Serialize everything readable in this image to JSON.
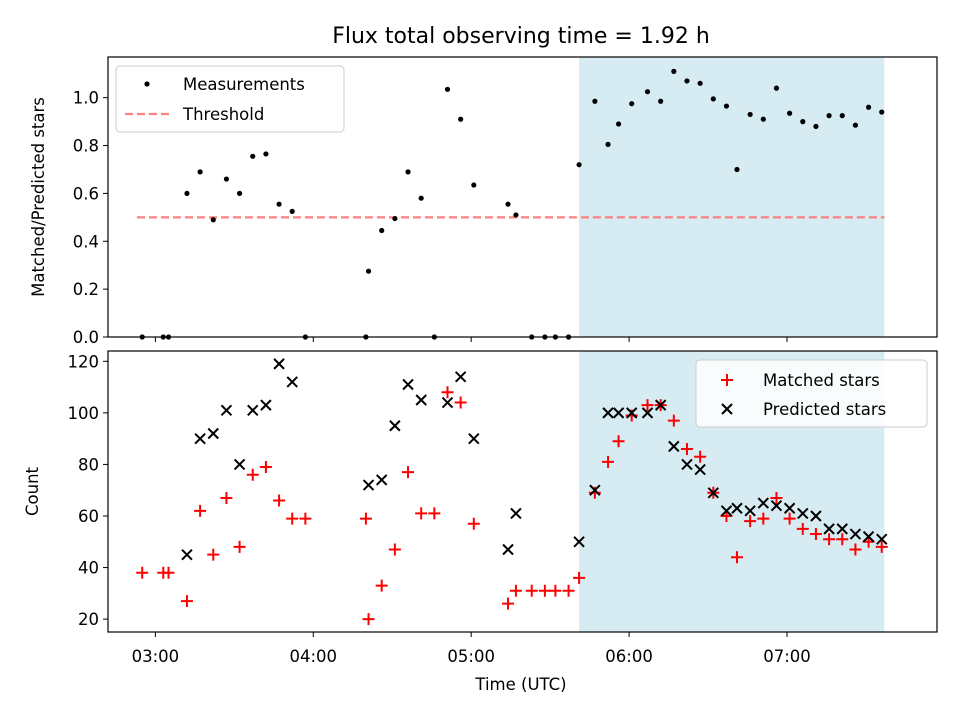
{
  "chart_data": [
    {
      "type": "scatter",
      "title": "Flux total observing time = 1.92 h",
      "xlabel": "",
      "ylabel": "Matched/Predicted stars",
      "ylim": [
        0,
        1.17
      ],
      "yticks": [
        "0.0",
        "0.2",
        "0.4",
        "0.6",
        "0.8",
        "1.0"
      ],
      "xlim": [
        "02:42",
        "07:57"
      ],
      "legend": {
        "placement": "top-left",
        "entries": [
          "Measurements",
          "Threshold"
        ]
      },
      "highlight_span": {
        "x_start": "05:41",
        "x_end": "07:37",
        "color": "#add8e6"
      },
      "threshold": {
        "value": 0.5,
        "x_start": "02:53",
        "x_end": "07:37",
        "color": "#ff8080"
      },
      "series": [
        {
          "name": "Measurements",
          "marker": "dot",
          "color": "#000000",
          "points": [
            [
              "02:55",
              0.0
            ],
            [
              "03:03",
              0.0
            ],
            [
              "03:05",
              0.0
            ],
            [
              "03:12",
              0.6
            ],
            [
              "03:17",
              0.69
            ],
            [
              "03:22",
              0.49
            ],
            [
              "03:27",
              0.66
            ],
            [
              "03:32",
              0.6
            ],
            [
              "03:37",
              0.755
            ],
            [
              "03:42",
              0.765
            ],
            [
              "03:47",
              0.555
            ],
            [
              "03:52",
              0.525
            ],
            [
              "03:57",
              0.0
            ],
            [
              "04:20",
              0.0
            ],
            [
              "04:21",
              0.275
            ],
            [
              "04:26",
              0.445
            ],
            [
              "04:31",
              0.495
            ],
            [
              "04:36",
              0.69
            ],
            [
              "04:41",
              0.58
            ],
            [
              "04:46",
              0.0
            ],
            [
              "04:51",
              1.035
            ],
            [
              "04:56",
              0.91
            ],
            [
              "05:01",
              0.635
            ],
            [
              "05:14",
              0.555
            ],
            [
              "05:17",
              0.51
            ],
            [
              "05:23",
              0.0
            ],
            [
              "05:28",
              0.0
            ],
            [
              "05:32",
              0.0
            ],
            [
              "05:37",
              0.0
            ],
            [
              "05:41",
              0.72
            ],
            [
              "05:47",
              0.985
            ],
            [
              "05:52",
              0.805
            ],
            [
              "05:56",
              0.89
            ],
            [
              "06:01",
              0.975
            ],
            [
              "06:07",
              1.025
            ],
            [
              "06:12",
              0.985
            ],
            [
              "06:17",
              1.11
            ],
            [
              "06:22",
              1.07
            ],
            [
              "06:27",
              1.06
            ],
            [
              "06:32",
              0.995
            ],
            [
              "06:37",
              0.965
            ],
            [
              "06:41",
              0.7
            ],
            [
              "06:46",
              0.93
            ],
            [
              "06:51",
              0.91
            ],
            [
              "06:56",
              1.04
            ],
            [
              "07:01",
              0.935
            ],
            [
              "07:06",
              0.9
            ],
            [
              "07:11",
              0.88
            ],
            [
              "07:16",
              0.925
            ],
            [
              "07:21",
              0.925
            ],
            [
              "07:26",
              0.885
            ],
            [
              "07:31",
              0.96
            ],
            [
              "07:36",
              0.94
            ]
          ]
        }
      ]
    },
    {
      "type": "scatter",
      "title": "",
      "xlabel": "Time (UTC)",
      "ylabel": "Count",
      "ylim": [
        15,
        124
      ],
      "yticks": [
        "20",
        "40",
        "60",
        "80",
        "100",
        "120"
      ],
      "xlim": [
        "02:42",
        "07:57"
      ],
      "xticks": [
        "03:00",
        "04:00",
        "05:00",
        "06:00",
        "07:00"
      ],
      "legend": {
        "placement": "top-right",
        "entries": [
          "Matched stars",
          "Predicted stars"
        ]
      },
      "highlight_span": {
        "x_start": "05:41",
        "x_end": "07:37",
        "color": "#add8e6"
      },
      "series": [
        {
          "name": "Matched stars",
          "marker": "plus",
          "color": "#ff0000",
          "points": [
            [
              "02:55",
              38
            ],
            [
              "03:03",
              38
            ],
            [
              "03:05",
              38
            ],
            [
              "03:12",
              27
            ],
            [
              "03:17",
              62
            ],
            [
              "03:22",
              45
            ],
            [
              "03:27",
              67
            ],
            [
              "03:32",
              48
            ],
            [
              "03:37",
              76
            ],
            [
              "03:42",
              79
            ],
            [
              "03:47",
              66
            ],
            [
              "03:52",
              59
            ],
            [
              "03:57",
              59
            ],
            [
              "04:20",
              59
            ],
            [
              "04:21",
              20
            ],
            [
              "04:26",
              33
            ],
            [
              "04:31",
              47
            ],
            [
              "04:36",
              77
            ],
            [
              "04:41",
              61
            ],
            [
              "04:46",
              61
            ],
            [
              "04:51",
              108
            ],
            [
              "04:56",
              104
            ],
            [
              "05:01",
              57
            ],
            [
              "05:14",
              26
            ],
            [
              "05:17",
              31
            ],
            [
              "05:23",
              31
            ],
            [
              "05:28",
              31
            ],
            [
              "05:32",
              31
            ],
            [
              "05:37",
              31
            ],
            [
              "05:41",
              36
            ],
            [
              "05:47",
              69
            ],
            [
              "05:52",
              81
            ],
            [
              "05:56",
              89
            ],
            [
              "06:01",
              99
            ],
            [
              "06:07",
              103
            ],
            [
              "06:12",
              103
            ],
            [
              "06:17",
              97
            ],
            [
              "06:22",
              86
            ],
            [
              "06:27",
              83
            ],
            [
              "06:32",
              69
            ],
            [
              "06:37",
              60
            ],
            [
              "06:41",
              44
            ],
            [
              "06:46",
              58
            ],
            [
              "06:51",
              59
            ],
            [
              "06:56",
              67
            ],
            [
              "07:01",
              59
            ],
            [
              "07:06",
              55
            ],
            [
              "07:11",
              53
            ],
            [
              "07:16",
              51
            ],
            [
              "07:21",
              51
            ],
            [
              "07:26",
              47
            ],
            [
              "07:31",
              50
            ],
            [
              "07:36",
              48
            ]
          ]
        },
        {
          "name": "Predicted stars",
          "marker": "x",
          "color": "#000000",
          "points": [
            [
              "03:12",
              45
            ],
            [
              "03:17",
              90
            ],
            [
              "03:22",
              92
            ],
            [
              "03:27",
              101
            ],
            [
              "03:32",
              80
            ],
            [
              "03:37",
              101
            ],
            [
              "03:42",
              103
            ],
            [
              "03:47",
              119
            ],
            [
              "03:52",
              112
            ],
            [
              "04:21",
              72
            ],
            [
              "04:26",
              74
            ],
            [
              "04:31",
              95
            ],
            [
              "04:36",
              111
            ],
            [
              "04:41",
              105
            ],
            [
              "04:51",
              104
            ],
            [
              "04:56",
              114
            ],
            [
              "05:01",
              90
            ],
            [
              "05:14",
              47
            ],
            [
              "05:17",
              61
            ],
            [
              "05:41",
              50
            ],
            [
              "05:47",
              70
            ],
            [
              "05:52",
              100
            ],
            [
              "05:56",
              100
            ],
            [
              "06:01",
              100
            ],
            [
              "06:07",
              100
            ],
            [
              "06:12",
              103
            ],
            [
              "06:17",
              87
            ],
            [
              "06:22",
              80
            ],
            [
              "06:27",
              78
            ],
            [
              "06:32",
              69
            ],
            [
              "06:37",
              62
            ],
            [
              "06:41",
              63
            ],
            [
              "06:46",
              62
            ],
            [
              "06:51",
              65
            ],
            [
              "06:56",
              64
            ],
            [
              "07:01",
              63
            ],
            [
              "07:06",
              61
            ],
            [
              "07:11",
              60
            ],
            [
              "07:16",
              55
            ],
            [
              "07:21",
              55
            ],
            [
              "07:26",
              53
            ],
            [
              "07:31",
              52
            ],
            [
              "07:36",
              51
            ]
          ]
        }
      ]
    }
  ]
}
